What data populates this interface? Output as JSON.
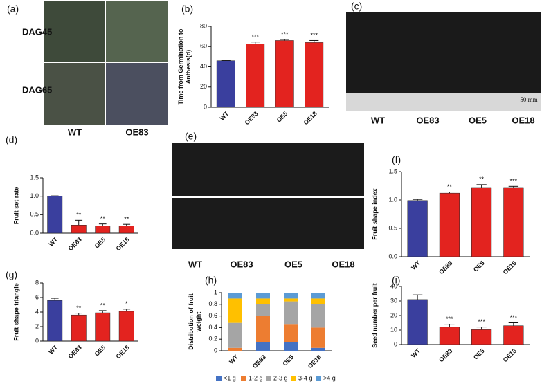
{
  "photo_panels": [
    {
      "panel_label": "(a)",
      "row_labels": [
        "DAG45",
        "DAG65"
      ],
      "column_labels": [
        "WT",
        "OE83"
      ]
    },
    {
      "panel_label": "(c)",
      "column_labels": [
        "WT",
        "OE83",
        "OE5",
        "OE18"
      ],
      "scale_label": "50 mm"
    },
    {
      "panel_label": "(e)",
      "column_labels": [
        "WT",
        "OE83",
        "OE5",
        "OE18"
      ]
    }
  ],
  "chart_data": [
    {
      "type": "bar",
      "panel_label": "(b)",
      "ylabel": [
        "Time from Germination to",
        "Anthesis(d)"
      ],
      "categories": [
        "WT",
        "OE83",
        "OE5",
        "OE18"
      ],
      "values": [
        46,
        62.5,
        66,
        64
      ],
      "errors": [
        0.5,
        2,
        1,
        2
      ],
      "significance": [
        null,
        "***",
        "***",
        "***"
      ],
      "colors": [
        "#3a3f9e",
        "#e3231f",
        "#e3231f",
        "#e3231f"
      ],
      "ylim": [
        0,
        80
      ],
      "yticks": [
        0,
        20,
        40,
        60,
        80
      ]
    },
    {
      "type": "bar",
      "panel_label": "(d)",
      "ylabel": [
        "Fruit set rate"
      ],
      "categories": [
        "WT",
        "OE83",
        "OE5",
        "OE18"
      ],
      "values": [
        1.0,
        0.22,
        0.2,
        0.2
      ],
      "errors": [
        0.01,
        0.13,
        0.05,
        0.04
      ],
      "significance": [
        null,
        "**",
        "**",
        "**"
      ],
      "colors": [
        "#3a3f9e",
        "#e3231f",
        "#e3231f",
        "#e3231f"
      ],
      "ylim": [
        0,
        1.5
      ],
      "yticks": [
        {
          "value": 0,
          "label": "0.0"
        },
        0.5,
        {
          "value": 1,
          "label": "1.0"
        },
        1.5
      ]
    },
    {
      "type": "bar",
      "panel_label": "(f)",
      "ylabel": [
        "Fruit shape index"
      ],
      "categories": [
        "WT",
        "OE83",
        "OE5",
        "OE18"
      ],
      "values": [
        0.99,
        1.12,
        1.22,
        1.22
      ],
      "errors": [
        0.02,
        0.02,
        0.05,
        0.02
      ],
      "significance": [
        null,
        "**",
        "**",
        "***"
      ],
      "colors": [
        "#3a3f9e",
        "#e3231f",
        "#e3231f",
        "#e3231f"
      ],
      "ylim": [
        0,
        1.5
      ],
      "yticks": [
        {
          "value": 0,
          "label": "0.0"
        },
        0.5,
        {
          "value": 1,
          "label": "1.0"
        },
        1.5
      ]
    },
    {
      "type": "bar",
      "panel_label": "(g)",
      "ylabel": [
        "Fruit shape triangle"
      ],
      "categories": [
        "WT",
        "OE83",
        "OE5",
        "OE18"
      ],
      "values": [
        5.6,
        3.6,
        3.9,
        4.1
      ],
      "errors": [
        0.3,
        0.25,
        0.3,
        0.3
      ],
      "significance": [
        null,
        "**",
        "**",
        "*"
      ],
      "colors": [
        "#3a3f9e",
        "#e3231f",
        "#e3231f",
        "#e3231f"
      ],
      "ylim": [
        0,
        8
      ],
      "yticks": [
        0,
        2,
        4,
        6,
        8
      ]
    },
    {
      "type": "stacked_bar",
      "panel_label": "(h)",
      "ylabel": [
        "Distribution of  fruit",
        "weight"
      ],
      "categories": [
        "WT",
        "OE83",
        "OE5",
        "OE18"
      ],
      "series": [
        {
          "name": "<1 g",
          "color": "#4472c4",
          "values": [
            0,
            0.15,
            0.15,
            0.05
          ]
        },
        {
          "name": "1-2 g",
          "color": "#ed7d31",
          "values": [
            0.05,
            0.45,
            0.3,
            0.35
          ]
        },
        {
          "name": "2-3 g",
          "color": "#a5a5a5",
          "values": [
            0.43,
            0.2,
            0.4,
            0.4
          ]
        },
        {
          "name": "3-4 g",
          "color": "#ffc000",
          "values": [
            0.42,
            0.1,
            0.05,
            0.1
          ]
        },
        {
          "name": ">4 g",
          "color": "#5b9bd5",
          "values": [
            0.1,
            0.1,
            0.1,
            0.1
          ]
        }
      ],
      "ylim": [
        0,
        1
      ],
      "yticks": [
        0,
        0.2,
        0.4,
        0.6,
        0.8,
        1
      ],
      "legend": "bottom"
    },
    {
      "type": "bar",
      "panel_label": "(i)",
      "ylabel": [
        "Seed number per fruit"
      ],
      "categories": [
        "WT",
        "OE83",
        "OE5",
        "OE18"
      ],
      "values": [
        31,
        12,
        10.3,
        13
      ],
      "errors": [
        3.2,
        2,
        1.8,
        2
      ],
      "significance": [
        null,
        "***",
        "***",
        "***"
      ],
      "colors": [
        "#3a3f9e",
        "#e3231f",
        "#e3231f",
        "#e3231f"
      ],
      "ylim": [
        0,
        40
      ],
      "yticks": [
        0,
        10,
        20,
        30,
        40
      ]
    }
  ]
}
